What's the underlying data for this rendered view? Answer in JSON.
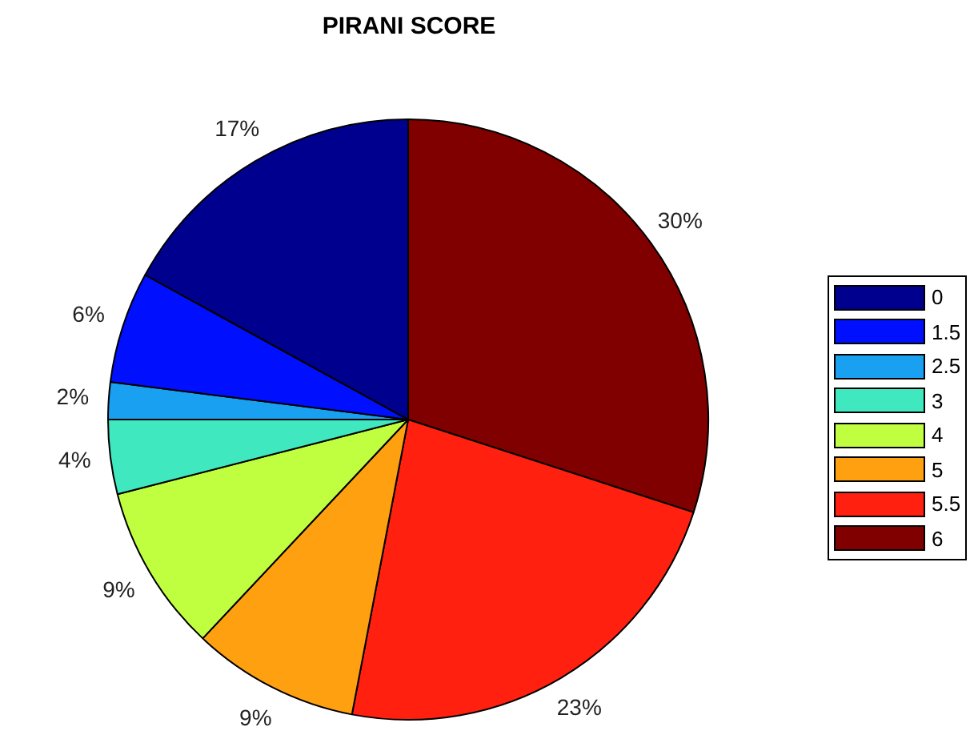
{
  "chart_data": {
    "type": "pie",
    "title": "PIRANI SCORE",
    "categories": [
      "0",
      "1.5",
      "2.5",
      "3",
      "4",
      "5",
      "5.5",
      "6"
    ],
    "values": [
      17,
      6,
      2,
      4,
      9,
      9,
      23,
      30
    ],
    "value_labels": [
      "17%",
      "6%",
      "2%",
      "4%",
      "9%",
      "9%",
      "23%",
      "30%"
    ],
    "colors": [
      "#00008f",
      "#0010ff",
      "#1aa0f0",
      "#40e8c0",
      "#c0ff40",
      "#ffa010",
      "#ff2010",
      "#800000"
    ],
    "legend": "right"
  }
}
